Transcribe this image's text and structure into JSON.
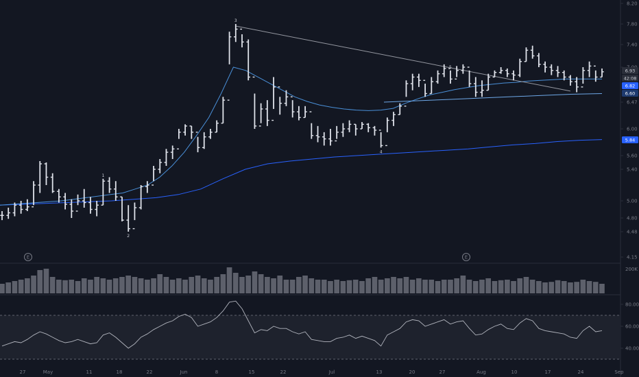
{
  "chart_data": {
    "type": "ohlc",
    "price_axis": {
      "ticks": [
        "8.20",
        "7.80",
        "7.40",
        "7.00",
        "6.47",
        "6.00",
        "5.60",
        "5.40",
        "5.00",
        "4.80",
        "4.48",
        "4.15"
      ],
      "labels": [
        {
          "text": "6.93",
          "color": "#d1d4dc",
          "bg": "#2a2e39"
        },
        {
          "text": "42:08",
          "color": "#d1d4dc",
          "bg": "#2a2e39"
        },
        {
          "text": "6.82",
          "color": "#ffffff",
          "bg": "#2962ff"
        },
        {
          "text": "6.60",
          "color": "#ffffff",
          "bg": "#1e3a6e"
        },
        {
          "text": "5.84",
          "color": "#ffffff",
          "bg": "#2962ff"
        }
      ]
    },
    "time_axis": [
      "27",
      "May",
      "11",
      "18",
      "22",
      "Jun",
      "8",
      "15",
      "22",
      "Jul",
      "13",
      "20",
      "27",
      "Aug",
      "10",
      "17",
      "24",
      "Sep"
    ],
    "bars": [
      [
        4.88,
        4.75,
        4.83
      ],
      [
        4.92,
        4.78,
        4.86
      ],
      [
        4.98,
        4.82,
        4.95
      ],
      [
        5.0,
        4.85,
        4.9
      ],
      [
        5.02,
        4.88,
        4.93
      ],
      [
        5.25,
        4.95,
        5.2
      ],
      [
        5.52,
        5.1,
        5.48
      ],
      [
        5.5,
        5.2,
        5.3
      ],
      [
        5.35,
        5.1,
        5.12
      ],
      [
        5.15,
        4.98,
        5.05
      ],
      [
        5.1,
        4.9,
        4.96
      ],
      [
        5.02,
        4.8,
        4.88
      ],
      [
        5.08,
        4.95,
        5.0
      ],
      [
        5.15,
        4.92,
        4.98
      ],
      [
        5.05,
        4.85,
        4.9
      ],
      [
        5.0,
        4.82,
        4.95
      ],
      [
        5.28,
        4.95,
        5.25
      ],
      [
        5.3,
        5.1,
        5.15
      ],
      [
        5.25,
        5.0,
        5.05
      ],
      [
        5.05,
        4.72,
        4.75
      ],
      [
        4.95,
        4.48,
        4.55
      ],
      [
        4.98,
        4.75,
        4.92
      ],
      [
        5.2,
        4.9,
        5.18
      ],
      [
        5.25,
        5.1,
        5.2
      ],
      [
        5.45,
        5.25,
        5.4
      ],
      [
        5.55,
        5.35,
        5.5
      ],
      [
        5.7,
        5.45,
        5.65
      ],
      [
        5.75,
        5.55,
        5.7
      ],
      [
        6.0,
        5.85,
        5.95
      ],
      [
        6.08,
        5.9,
        6.05
      ],
      [
        6.05,
        5.85,
        5.95
      ],
      [
        5.88,
        5.65,
        5.72
      ],
      [
        5.95,
        5.7,
        5.88
      ],
      [
        6.0,
        5.85,
        5.95
      ],
      [
        6.15,
        5.95,
        6.1
      ],
      [
        6.55,
        6.1,
        6.5
      ],
      [
        7.65,
        7.05,
        7.55
      ],
      [
        7.8,
        7.45,
        7.7
      ],
      [
        7.6,
        7.35,
        7.45
      ],
      [
        7.5,
        6.8,
        6.85
      ],
      [
        6.6,
        6.0,
        6.05
      ],
      [
        6.45,
        6.1,
        6.35
      ],
      [
        6.5,
        6.05,
        6.15
      ],
      [
        6.85,
        6.35,
        6.7
      ],
      [
        6.55,
        6.25,
        6.45
      ],
      [
        6.65,
        6.4,
        6.55
      ],
      [
        6.5,
        6.2,
        6.3
      ],
      [
        6.4,
        6.15,
        6.2
      ],
      [
        6.4,
        6.2,
        6.3
      ],
      [
        6.1,
        5.85,
        5.9
      ],
      [
        6.05,
        5.8,
        5.88
      ],
      [
        5.95,
        5.75,
        5.85
      ],
      [
        6.0,
        5.75,
        5.82
      ],
      [
        6.05,
        5.85,
        5.95
      ],
      [
        6.1,
        5.88,
        6.0
      ],
      [
        6.15,
        5.95,
        6.08
      ],
      [
        6.08,
        5.9,
        6.0
      ],
      [
        6.12,
        6.0,
        6.08
      ],
      [
        6.1,
        5.95,
        6.02
      ],
      [
        6.05,
        5.9,
        5.98
      ],
      [
        5.95,
        5.72,
        5.75
      ],
      [
        6.2,
        5.95,
        6.15
      ],
      [
        6.3,
        6.05,
        6.25
      ],
      [
        6.45,
        6.25,
        6.4
      ],
      [
        6.8,
        6.55,
        6.75
      ],
      [
        6.9,
        6.65,
        6.85
      ],
      [
        6.9,
        6.7,
        6.8
      ],
      [
        6.75,
        6.55,
        6.6
      ],
      [
        6.85,
        6.6,
        6.78
      ],
      [
        6.95,
        6.75,
        6.9
      ],
      [
        7.05,
        6.85,
        6.98
      ],
      [
        6.95,
        6.75,
        6.82
      ],
      [
        7.02,
        6.85,
        6.95
      ],
      [
        7.05,
        6.9,
        7.0
      ],
      [
        6.95,
        6.7,
        6.75
      ],
      [
        6.85,
        6.55,
        6.62
      ],
      [
        6.8,
        6.55,
        6.65
      ],
      [
        6.9,
        6.65,
        6.85
      ],
      [
        6.95,
        6.85,
        6.92
      ],
      [
        7.0,
        6.9,
        6.95
      ],
      [
        6.98,
        6.85,
        6.9
      ],
      [
        6.95,
        6.8,
        6.88
      ],
      [
        7.15,
        6.85,
        7.1
      ],
      [
        7.35,
        7.1,
        7.3
      ],
      [
        7.38,
        7.15,
        7.2
      ],
      [
        7.25,
        7.0,
        7.05
      ],
      [
        7.1,
        6.92,
        7.0
      ],
      [
        7.05,
        6.88,
        6.95
      ],
      [
        7.02,
        6.85,
        6.92
      ],
      [
        6.95,
        6.8,
        6.85
      ],
      [
        6.88,
        6.72,
        6.78
      ],
      [
        6.85,
        6.62,
        6.7
      ],
      [
        7.0,
        6.75,
        6.95
      ],
      [
        7.1,
        6.85,
        7.02
      ],
      [
        6.95,
        6.78,
        6.85
      ],
      [
        6.98,
        6.85,
        6.93
      ]
    ],
    "ma_short": [
      4.95,
      4.96,
      4.97,
      4.98,
      4.99,
      5.0,
      5.02,
      5.04,
      5.06,
      5.08,
      5.1,
      5.15,
      5.2,
      5.3,
      5.45,
      5.65,
      5.9,
      6.2,
      6.6,
      7.0,
      6.95,
      6.85,
      6.75,
      6.65,
      6.55,
      6.48,
      6.42,
      6.38,
      6.35,
      6.33,
      6.32,
      6.33,
      6.36,
      6.45,
      6.52,
      6.58,
      6.62,
      6.66,
      6.69,
      6.72,
      6.74,
      6.76,
      6.77,
      6.79,
      6.8,
      6.81,
      6.82,
      6.82,
      6.82,
      6.82
    ],
    "ma_mid": [
      6.47,
      6.49,
      6.51,
      6.53,
      6.55,
      6.57,
      6.59,
      6.6
    ],
    "ma_long": [
      4.95,
      4.96,
      4.97,
      4.98,
      4.99,
      5.0,
      5.02,
      5.04,
      5.08,
      5.15,
      5.28,
      5.4,
      5.48,
      5.52,
      5.55,
      5.58,
      5.6,
      5.62,
      5.64,
      5.66,
      5.68,
      5.7,
      5.73,
      5.76,
      5.78,
      5.81,
      5.83,
      5.84
    ],
    "wave_labels": [
      "3",
      "1",
      "2",
      "4",
      "5"
    ],
    "event_markers": [
      "E",
      "E"
    ],
    "volume_axis_label": "200K",
    "volumes": [
      0.35,
      0.4,
      0.45,
      0.5,
      0.55,
      0.65,
      0.85,
      0.9,
      0.6,
      0.5,
      0.48,
      0.5,
      0.45,
      0.55,
      0.5,
      0.6,
      0.55,
      0.5,
      0.55,
      0.6,
      0.65,
      0.6,
      0.55,
      0.5,
      0.55,
      0.7,
      0.6,
      0.5,
      0.55,
      0.5,
      0.6,
      0.65,
      0.55,
      0.5,
      0.6,
      0.7,
      0.95,
      0.75,
      0.6,
      0.65,
      0.8,
      0.7,
      0.6,
      0.55,
      0.65,
      0.5,
      0.5,
      0.6,
      0.65,
      0.55,
      0.5,
      0.5,
      0.45,
      0.5,
      0.45,
      0.48,
      0.5,
      0.45,
      0.55,
      0.6,
      0.5,
      0.55,
      0.6,
      0.55,
      0.6,
      0.5,
      0.55,
      0.5,
      0.5,
      0.45,
      0.5,
      0.5,
      0.55,
      0.65,
      0.5,
      0.45,
      0.5,
      0.55,
      0.45,
      0.48,
      0.5,
      0.45,
      0.55,
      0.6,
      0.5,
      0.45,
      0.4,
      0.42,
      0.48,
      0.45,
      0.4,
      0.42,
      0.5,
      0.45,
      0.42,
      0.35
    ],
    "rsi_axis": [
      "80.00",
      "60.00",
      "40.00"
    ],
    "rsi_levels": [
      70,
      30
    ],
    "rsi": [
      42,
      44,
      46,
      45,
      48,
      52,
      55,
      53,
      50,
      47,
      45,
      46,
      48,
      46,
      44,
      45,
      52,
      54,
      50,
      45,
      40,
      44,
      50,
      53,
      57,
      60,
      63,
      65,
      69,
      71,
      68,
      60,
      62,
      64,
      68,
      74,
      82,
      83,
      76,
      65,
      54,
      57,
      56,
      60,
      58,
      58,
      55,
      53,
      55,
      48,
      47,
      46,
      46,
      49,
      50,
      52,
      49,
      51,
      49,
      47,
      42,
      52,
      55,
      58,
      64,
      66,
      65,
      60,
      62,
      64,
      66,
      62,
      64,
      65,
      58,
      52,
      53,
      57,
      60,
      62,
      58,
      57,
      63,
      67,
      65,
      58,
      56,
      55,
      54,
      53,
      50,
      49,
      56,
      60,
      55,
      56
    ]
  }
}
